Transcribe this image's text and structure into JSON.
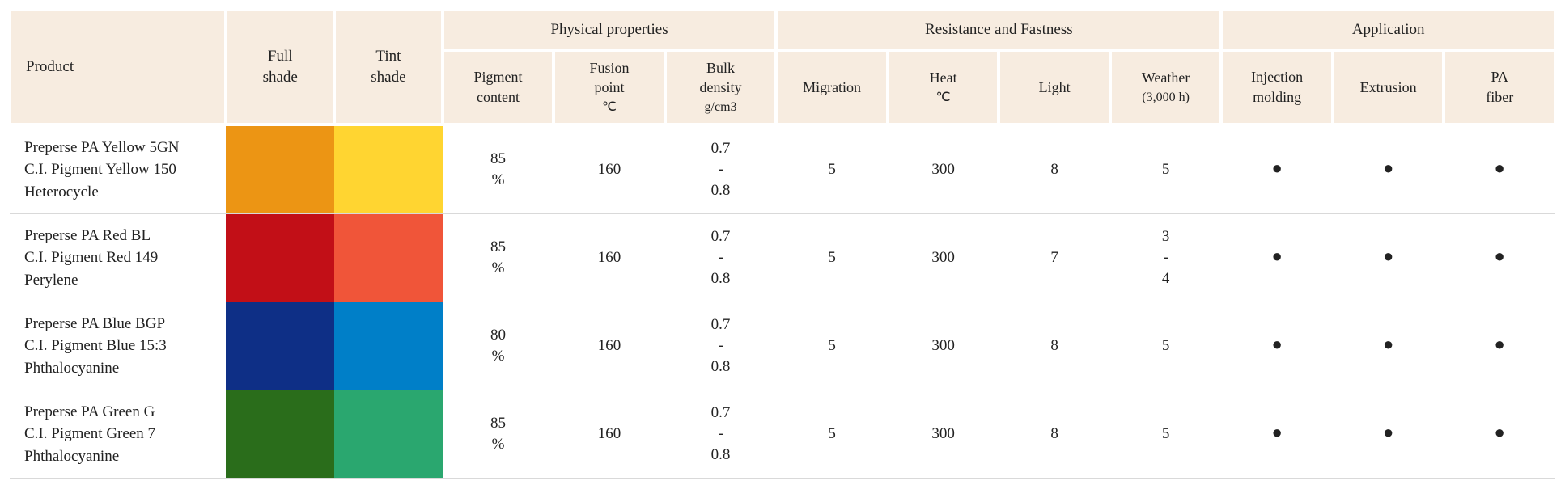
{
  "headers": {
    "product": "Product",
    "full_shade": "Full\nshade",
    "tint_shade": "Tint\nshade",
    "physical": "Physical properties",
    "resistance": "Resistance and Fastness",
    "application": "Application",
    "pigment_content": "Pigment\ncontent",
    "fusion_point": "Fusion\npoint",
    "fusion_point_unit": "℃",
    "bulk_density": "Bulk\ndensity",
    "bulk_density_unit": "g/cm3",
    "migration": "Migration",
    "heat": "Heat",
    "heat_unit": "℃",
    "light": "Light",
    "weather": "Weather",
    "weather_sub": "(3,000 h)",
    "injection": "Injection\nmolding",
    "extrusion": "Extrusion",
    "pa_fiber": "PA\nfiber"
  },
  "dot_glyph": "●",
  "rows": [
    {
      "product": "Preperse PA Yellow 5GN\nC.I. Pigment Yellow 150\nHeterocycle",
      "full_shade_color": "#ec9514",
      "tint_shade_color": "#ffd531",
      "pigment_content": "85\n%",
      "fusion_point": "160",
      "bulk_density": "0.7\n-\n0.8",
      "migration": "5",
      "heat": "300",
      "light": "8",
      "weather": "5",
      "injection": true,
      "extrusion": true,
      "pa_fiber": true
    },
    {
      "product": "Preperse PA Red BL\nC.I. Pigment Red 149\nPerylene",
      "full_shade_color": "#c20f17",
      "tint_shade_color": "#f05539",
      "pigment_content": "85\n%",
      "fusion_point": "160",
      "bulk_density": "0.7\n-\n0.8",
      "migration": "5",
      "heat": "300",
      "light": "7",
      "weather": "3\n-\n4",
      "injection": true,
      "extrusion": true,
      "pa_fiber": true
    },
    {
      "product": "Preperse PA Blue BGP\nC.I. Pigment Blue 15:3\nPhthalocyanine",
      "full_shade_color": "#0e2f86",
      "tint_shade_color": "#007fc8",
      "pigment_content": "80\n%",
      "fusion_point": "160",
      "bulk_density": "0.7\n-\n0.8",
      "migration": "5",
      "heat": "300",
      "light": "8",
      "weather": "5",
      "injection": true,
      "extrusion": true,
      "pa_fiber": true
    },
    {
      "product": "Preperse PA Green G\nC.I. Pigment Green 7\nPhthalocyanine",
      "full_shade_color": "#2a6d1b",
      "tint_shade_color": "#2aa76f",
      "pigment_content": "85\n%",
      "fusion_point": "160",
      "bulk_density": "0.7\n-\n0.8",
      "migration": "5",
      "heat": "300",
      "light": "8",
      "weather": "5",
      "injection": true,
      "extrusion": true,
      "pa_fiber": true
    }
  ]
}
